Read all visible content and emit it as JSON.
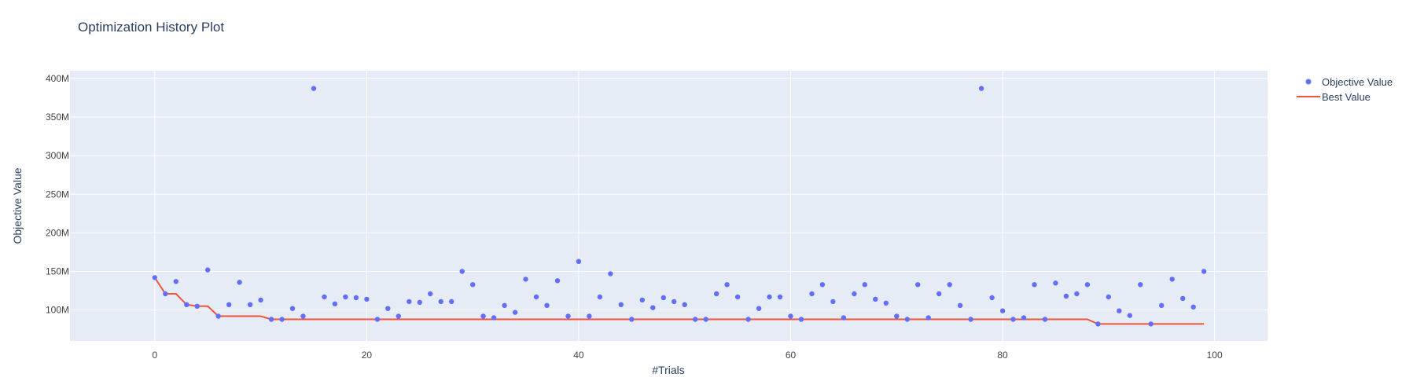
{
  "chart_data": {
    "type": "scatter",
    "title": "Optimization History Plot",
    "xlabel": "#Trials",
    "ylabel": "Objective Value",
    "xlim": [
      -8,
      105
    ],
    "ylim": [
      60,
      410
    ],
    "x_ticks": [
      0,
      20,
      40,
      60,
      80,
      100
    ],
    "y_ticks": [
      {
        "value": 100,
        "label": "100M"
      },
      {
        "value": 150,
        "label": "150M"
      },
      {
        "value": 200,
        "label": "200M"
      },
      {
        "value": 250,
        "label": "250M"
      },
      {
        "value": 300,
        "label": "300M"
      },
      {
        "value": 350,
        "label": "350M"
      },
      {
        "value": 400,
        "label": "400M"
      }
    ],
    "y_unit": "M",
    "grid": true,
    "legend_position": "top-right",
    "colors": {
      "plot_bg": "#e5ecf6",
      "grid": "#ffffff",
      "objective": "#636efa",
      "best": "#ef553b",
      "text": "#2a3f5f",
      "tick_text": "#444444"
    },
    "series": [
      {
        "name": "Objective Value",
        "mode": "markers",
        "x": [
          0,
          1,
          2,
          3,
          4,
          5,
          6,
          7,
          8,
          9,
          10,
          11,
          12,
          13,
          14,
          15,
          16,
          17,
          18,
          19,
          20,
          21,
          22,
          23,
          24,
          25,
          26,
          27,
          28,
          29,
          30,
          31,
          32,
          33,
          34,
          35,
          36,
          37,
          38,
          39,
          40,
          41,
          42,
          43,
          44,
          45,
          46,
          47,
          48,
          49,
          50,
          51,
          52,
          53,
          54,
          55,
          56,
          57,
          58,
          59,
          60,
          61,
          62,
          63,
          64,
          65,
          66,
          67,
          68,
          69,
          70,
          71,
          72,
          73,
          74,
          75,
          76,
          77,
          78,
          79,
          80,
          81,
          82,
          83,
          84,
          85,
          86,
          87,
          88,
          89,
          90,
          91,
          92,
          93,
          94,
          95,
          96,
          97,
          98,
          99
        ],
        "y": [
          142,
          121,
          137,
          107,
          105,
          152,
          92,
          107,
          136,
          107,
          113,
          88,
          88,
          102,
          92,
          387,
          117,
          108,
          117,
          116,
          114,
          88,
          102,
          92,
          111,
          110,
          121,
          111,
          111,
          150,
          133,
          92,
          90,
          106,
          97,
          140,
          117,
          106,
          138,
          92,
          163,
          92,
          117,
          147,
          107,
          88,
          113,
          103,
          116,
          111,
          107,
          88,
          88,
          121,
          133,
          117,
          88,
          102,
          117,
          117,
          92,
          88,
          121,
          133,
          111,
          90,
          121,
          133,
          114,
          109,
          92,
          88,
          133,
          90,
          121,
          133,
          106,
          88,
          387,
          116,
          99,
          88,
          90,
          133,
          88,
          135,
          118,
          121,
          133,
          82,
          117,
          99,
          93,
          133,
          82,
          106,
          140,
          115,
          104,
          150
        ]
      },
      {
        "name": "Best Value",
        "mode": "lines",
        "x": [
          0,
          1,
          2,
          3,
          4,
          5,
          6,
          7,
          8,
          9,
          10,
          11,
          12,
          13,
          14,
          15,
          16,
          17,
          18,
          19,
          20,
          21,
          22,
          23,
          24,
          25,
          26,
          27,
          28,
          29,
          30,
          31,
          32,
          33,
          34,
          35,
          36,
          37,
          38,
          39,
          40,
          41,
          42,
          43,
          44,
          45,
          46,
          47,
          48,
          49,
          50,
          51,
          52,
          53,
          54,
          55,
          56,
          57,
          58,
          59,
          60,
          61,
          62,
          63,
          64,
          65,
          66,
          67,
          68,
          69,
          70,
          71,
          72,
          73,
          74,
          75,
          76,
          77,
          78,
          79,
          80,
          81,
          82,
          83,
          84,
          85,
          86,
          87,
          88,
          89,
          90,
          91,
          92,
          93,
          94,
          95,
          96,
          97,
          98,
          99
        ],
        "y": [
          142,
          121,
          121,
          107,
          105,
          105,
          92,
          92,
          92,
          92,
          92,
          88,
          88,
          88,
          88,
          88,
          88,
          88,
          88,
          88,
          88,
          88,
          88,
          88,
          88,
          88,
          88,
          88,
          88,
          88,
          88,
          88,
          88,
          88,
          88,
          88,
          88,
          88,
          88,
          88,
          88,
          88,
          88,
          88,
          88,
          88,
          88,
          88,
          88,
          88,
          88,
          88,
          88,
          88,
          88,
          88,
          88,
          88,
          88,
          88,
          88,
          88,
          88,
          88,
          88,
          88,
          88,
          88,
          88,
          88,
          88,
          88,
          88,
          88,
          88,
          88,
          88,
          88,
          88,
          88,
          88,
          88,
          88,
          88,
          88,
          88,
          88,
          88,
          88,
          82,
          82,
          82,
          82,
          82,
          82,
          82,
          82,
          82,
          82,
          82
        ]
      }
    ]
  }
}
